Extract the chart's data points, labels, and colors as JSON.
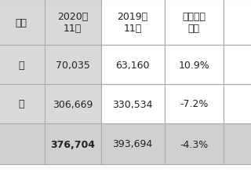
{
  "col_headers": [
    "구분",
    "2020년\n11월",
    "2019년\n11월",
    "전년동월\n대비"
  ],
  "rows": [
    [
      "내",
      "70,035",
      "63,160",
      "10.9%"
    ],
    [
      "시",
      "306,669",
      "330,534",
      "-7.2%"
    ],
    [
      "",
      "376,704",
      "393,694",
      "-4.3%"
    ]
  ],
  "border_color": "#aaaaaa",
  "text_color": "#222222",
  "grey_light": "#d9d9d9",
  "grey_row3": "#d0d0d0",
  "white": "#ffffff",
  "fontsize": 9
}
